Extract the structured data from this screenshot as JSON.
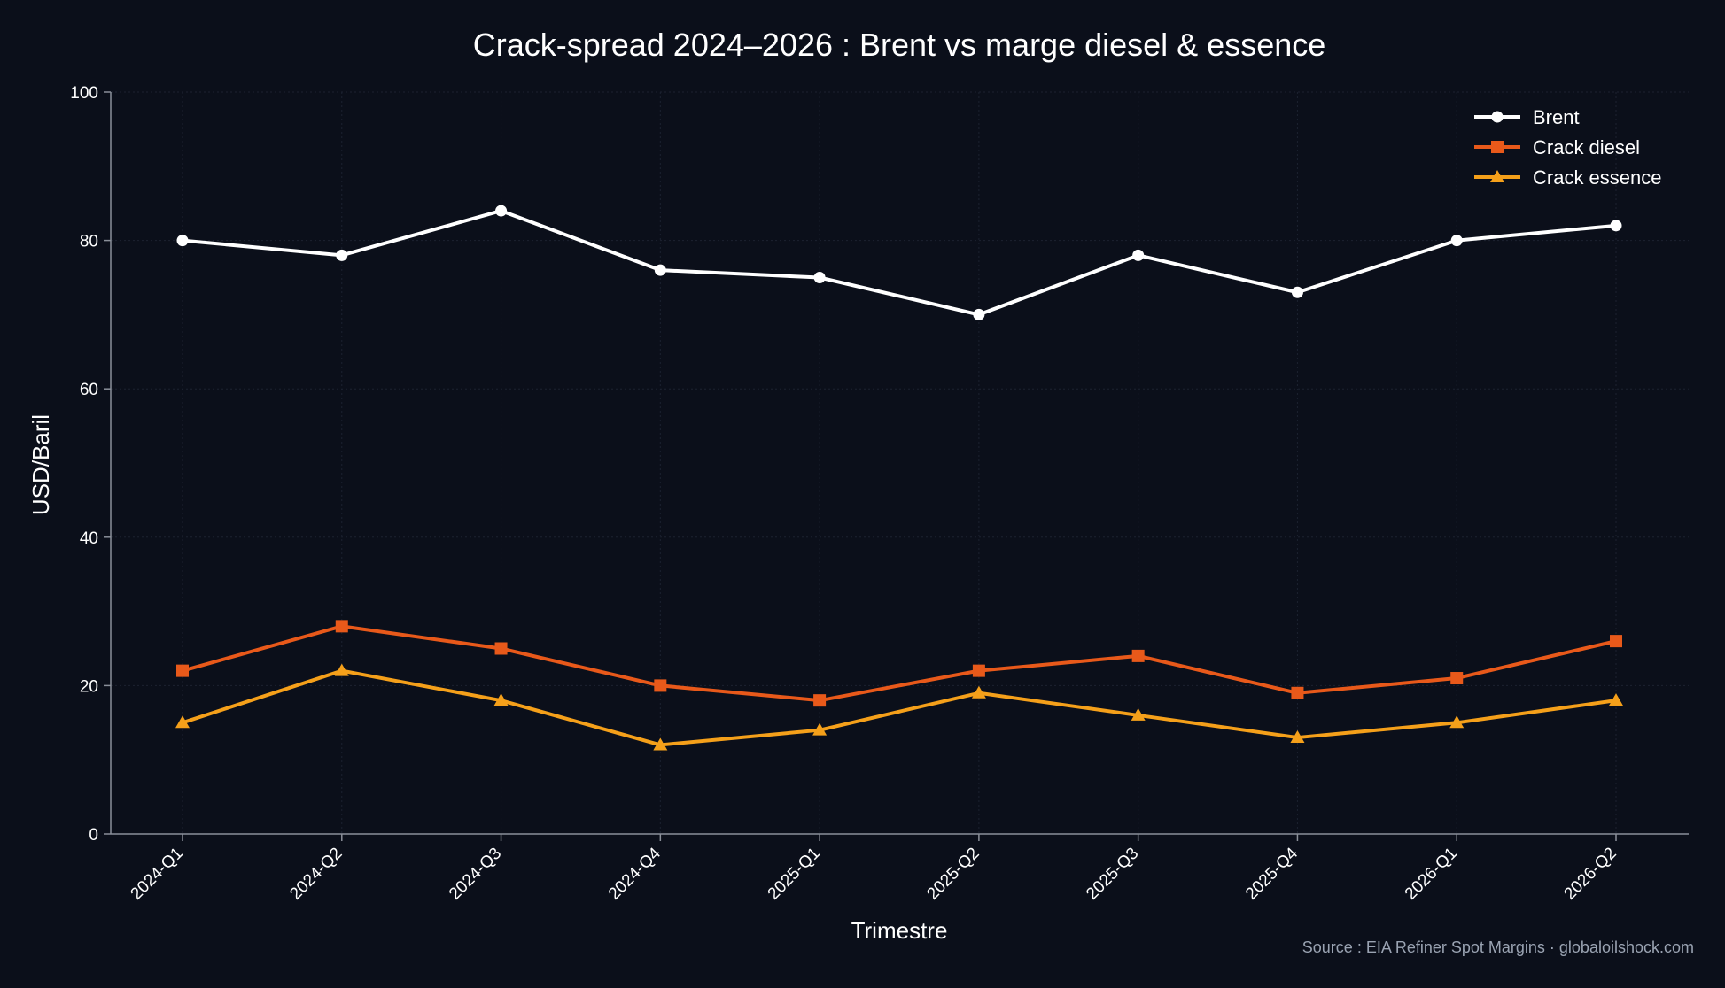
{
  "chart_data": {
    "type": "line",
    "title": "Crack-spread 2024–2026 : Brent vs marge diesel & essence",
    "xlabel": "Trimestre",
    "ylabel": "USD/Baril",
    "categories": [
      "2024-Q1",
      "2024-Q2",
      "2024-Q3",
      "2024-Q4",
      "2025-Q1",
      "2025-Q2",
      "2025-Q3",
      "2025-Q4",
      "2026-Q1",
      "2026-Q2"
    ],
    "ylim": [
      0,
      100
    ],
    "yticks": [
      0,
      20,
      40,
      60,
      80,
      100
    ],
    "grid": true,
    "legend_position": "top-right",
    "series": [
      {
        "name": "Brent",
        "values": [
          80,
          78,
          84,
          76,
          75,
          70,
          78,
          73,
          80,
          82
        ],
        "color": "#ffffff",
        "marker": "circle"
      },
      {
        "name": "Crack diesel",
        "values": [
          22,
          28,
          25,
          20,
          18,
          22,
          24,
          19,
          21,
          26
        ],
        "color": "#e8591a",
        "marker": "square"
      },
      {
        "name": "Crack essence",
        "values": [
          15,
          22,
          18,
          12,
          14,
          19,
          16,
          13,
          15,
          18
        ],
        "color": "#f5a01a",
        "marker": "triangle"
      }
    ],
    "source_note": "Source : EIA Refiner Spot Margins · globaloilshock.com"
  }
}
